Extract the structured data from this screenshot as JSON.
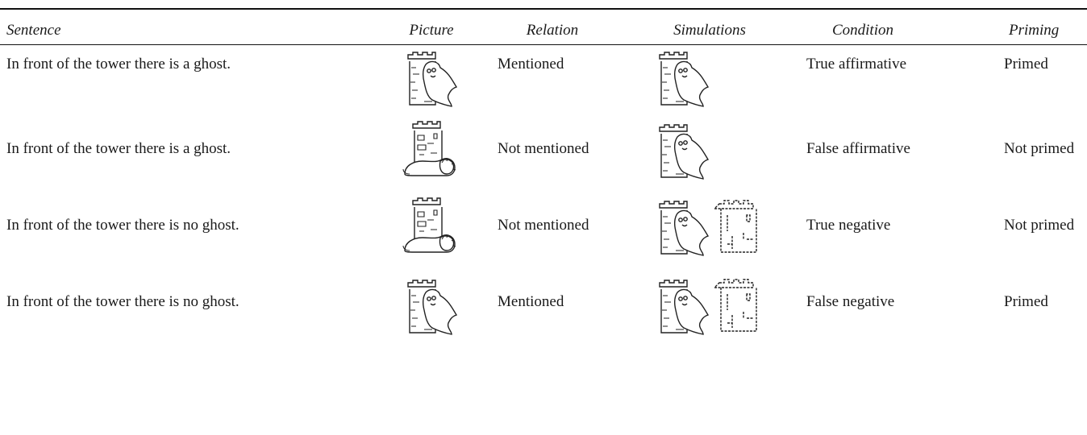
{
  "table": {
    "header": [
      "Sentence",
      "Picture",
      "Relation",
      "Simulations",
      "Condition",
      "Priming"
    ],
    "rows": [
      {
        "sentence": "In front of the tower there is a ghost.",
        "relation": "Mentioned",
        "condition": "True affirmative",
        "priming": "Primed"
      },
      {
        "sentence": "In front of the tower there is a ghost.",
        "relation": "Not mentioned",
        "condition": "False affirmative",
        "priming": "Not primed"
      },
      {
        "sentence": "In front of the tower there is no ghost.",
        "relation": "Not mentioned",
        "condition": "True negative",
        "priming": "Not primed"
      },
      {
        "sentence": "In front of the tower there is no ghost.",
        "relation": "Mentioned",
        "condition": "False negative",
        "priming": "Primed"
      }
    ]
  }
}
